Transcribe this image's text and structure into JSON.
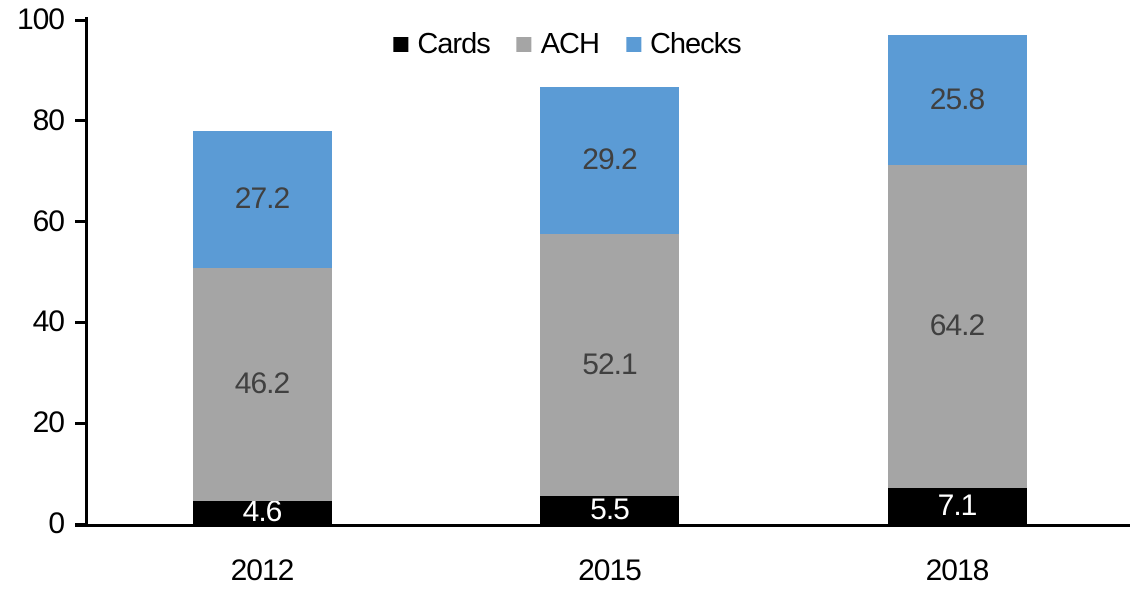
{
  "chart_data": {
    "type": "bar",
    "stacked": true,
    "title": "",
    "xlabel": "",
    "ylabel": "",
    "categories": [
      "2012",
      "2015",
      "2018"
    ],
    "series": [
      {
        "name": "Cards",
        "color": "#000000",
        "label_color": "#ffffff",
        "values": [
          4.6,
          5.5,
          7.1
        ]
      },
      {
        "name": "ACH",
        "color": "#A5A5A5",
        "label_color": "#404040",
        "values": [
          46.2,
          52.1,
          64.2
        ]
      },
      {
        "name": "Checks",
        "color": "#5B9BD5",
        "label_color": "#404040",
        "values": [
          27.2,
          29.2,
          25.8
        ]
      }
    ],
    "totals": [
      78.0,
      86.8,
      97.1
    ],
    "yticks": [
      0,
      20,
      40,
      60,
      80,
      100
    ],
    "ylim": [
      0,
      100
    ],
    "grid": false,
    "legend_position": "top-center",
    "axis_color": "#000000",
    "background_color": "#ffffff"
  }
}
